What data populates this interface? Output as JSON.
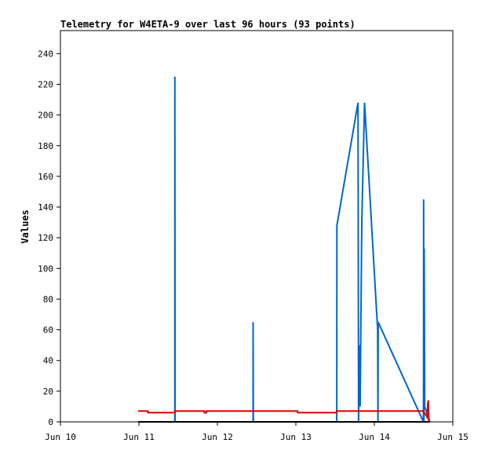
{
  "chart_data": {
    "type": "line",
    "title": "Telemetry for W4ETA-9 over last 96 hours (93 points)",
    "xlabel": "",
    "ylabel": "Values",
    "xlim": [
      "2024-06-10T00:00",
      "2024-06-15T00:00"
    ],
    "ylim": [
      0,
      255
    ],
    "x_tick_labels": [
      "Jun 10",
      "Jun 11",
      "Jun 12",
      "Jun 13",
      "Jun 14",
      "Jun 15"
    ],
    "y_ticks": [
      0,
      20,
      40,
      60,
      80,
      100,
      120,
      140,
      160,
      180,
      200,
      220,
      240
    ],
    "grid": false,
    "legend": "none",
    "series": [
      {
        "color": "#0066cc",
        "points": [
          [
            "2024-06-10T23:45",
            0
          ],
          [
            "2024-06-11T11:00",
            0
          ],
          [
            "2024-06-11T11:00",
            225
          ],
          [
            "2024-06-11T11:04",
            0
          ],
          [
            "2024-06-12T10:55",
            0
          ],
          [
            "2024-06-12T10:55",
            65
          ],
          [
            "2024-06-12T10:59",
            0
          ],
          [
            "2024-06-13T12:30",
            0
          ],
          [
            "2024-06-13T12:31",
            65
          ],
          [
            "2024-06-13T12:33",
            128
          ],
          [
            "2024-06-13T19:00",
            208
          ],
          [
            "2024-06-13T19:10",
            0
          ],
          [
            "2024-06-13T19:30",
            50
          ],
          [
            "2024-06-13T19:40",
            10
          ],
          [
            "2024-06-13T20:10",
            130
          ],
          [
            "2024-06-13T21:00",
            208
          ],
          [
            "2024-06-14T01:00",
            60
          ],
          [
            "2024-06-14T01:06",
            0
          ],
          [
            "2024-06-14T01:10",
            65
          ],
          [
            "2024-06-14T15:00",
            0
          ],
          [
            "2024-06-14T15:03",
            25
          ],
          [
            "2024-06-14T15:05",
            145
          ],
          [
            "2024-06-14T15:10",
            0
          ],
          [
            "2024-06-14T15:15",
            113
          ],
          [
            "2024-06-14T15:25",
            10
          ],
          [
            "2024-06-14T17:00",
            0
          ]
        ]
      },
      {
        "color": "#dd0000",
        "points": [
          [
            "2024-06-10T23:45",
            7
          ],
          [
            "2024-06-11T02:45",
            7
          ],
          [
            "2024-06-11T02:46",
            6
          ],
          [
            "2024-06-11T11:00",
            6
          ],
          [
            "2024-06-11T11:01",
            7
          ],
          [
            "2024-06-11T20:00",
            7
          ],
          [
            "2024-06-11T20:01",
            6
          ],
          [
            "2024-06-11T20:40",
            6
          ],
          [
            "2024-06-11T20:41",
            7
          ],
          [
            "2024-06-13T00:30",
            7
          ],
          [
            "2024-06-13T00:31",
            6
          ],
          [
            "2024-06-13T12:30",
            6
          ],
          [
            "2024-06-13T12:31",
            7
          ],
          [
            "2024-06-14T15:00",
            7
          ],
          [
            "2024-06-14T16:10",
            3
          ],
          [
            "2024-06-14T16:20",
            12
          ],
          [
            "2024-06-14T16:30",
            14
          ],
          [
            "2024-06-14T16:40",
            0
          ]
        ]
      },
      {
        "color": "#000000",
        "points": [
          [
            "2024-06-10T23:45",
            0
          ],
          [
            "2024-06-14T17:00",
            0
          ]
        ]
      }
    ]
  }
}
